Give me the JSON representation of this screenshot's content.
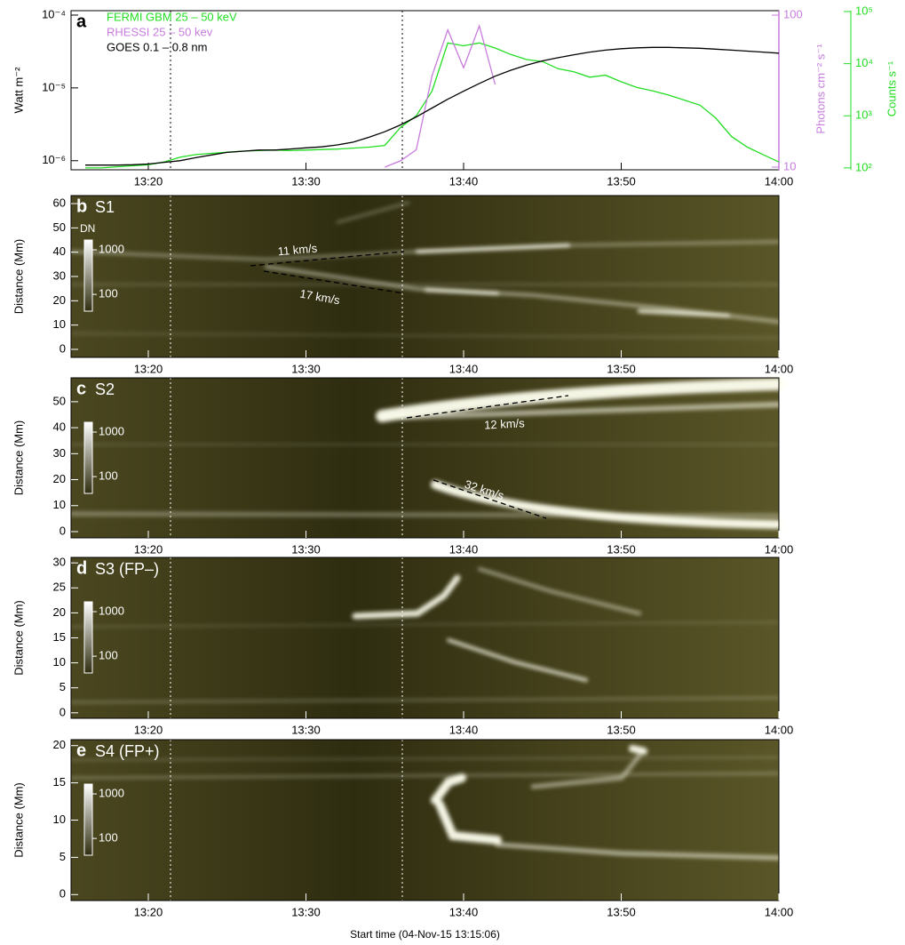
{
  "chart_data": [
    {
      "type": "line",
      "label": "a",
      "log": true,
      "xlim": [
        "13:15:06",
        "14:00"
      ],
      "xticks": [
        "13:20",
        "13:30",
        "13:40",
        "13:50",
        "14:00"
      ],
      "x": [
        "13:16",
        "13:17",
        "13:18",
        "13:19",
        "13:20",
        "13:21",
        "13:22",
        "13:23",
        "13:24",
        "13:25",
        "13:26",
        "13:27",
        "13:28",
        "13:29",
        "13:30",
        "13:31",
        "13:32",
        "13:33",
        "13:34",
        "13:35",
        "13:36",
        "13:37",
        "13:38",
        "13:39",
        "13:40",
        "13:41",
        "13:42",
        "13:43",
        "13:44",
        "13:45",
        "13:46",
        "13:47",
        "13:48",
        "13:49",
        "13:50",
        "13:51",
        "13:52",
        "13:53",
        "13:54",
        "13:55",
        "13:56",
        "13:57",
        "13:58",
        "13:59",
        "14:00"
      ],
      "ylabel": "Watt m⁻²",
      "ylim": [
        7.5e-07,
        0.000115
      ],
      "yticks": [
        {
          "value": 1e-06,
          "label": "10⁻⁶"
        },
        {
          "value": 1e-05,
          "label": "10⁻⁵"
        },
        {
          "value": 0.0001,
          "label": "10⁻⁴"
        }
      ],
      "y2label": "Photons cm⁻² s⁻¹",
      "y2color": "#c77cdd",
      "y2lim": [
        9.6,
        107
      ],
      "y2ticks": [
        10,
        100
      ],
      "y3label": "Counts s⁻¹",
      "y3color": "#22dd22",
      "y3lim": [
        92,
        104000
      ],
      "y3ticks": [
        {
          "value": 100,
          "label": "10²"
        },
        {
          "value": 1000,
          "label": "10³"
        },
        {
          "value": 10000,
          "label": "10⁴"
        },
        {
          "value": 100000,
          "label": "10⁵"
        }
      ],
      "series": [
        {
          "name": "FERMI GBM 25 – 50 keV",
          "color": "#22dd22",
          "axis": "y3",
          "values": [
            100,
            100,
            105,
            110,
            115,
            130,
            160,
            180,
            190,
            200,
            210,
            215,
            220,
            215,
            220,
            225,
            230,
            240,
            250,
            270,
            600,
            1000,
            3000,
            25000,
            22000,
            25000,
            20000,
            15000,
            12000,
            11000,
            8000,
            7000,
            5500,
            6000,
            4500,
            3500,
            3000,
            2500,
            2000,
            1600,
            900,
            400,
            250,
            180,
            130
          ]
        },
        {
          "name": "RHESSI 25 – 50 kev",
          "color": "#c77cdd",
          "axis": "y2",
          "values": [
            null,
            null,
            null,
            null,
            null,
            null,
            null,
            null,
            null,
            null,
            null,
            null,
            null,
            null,
            null,
            null,
            null,
            null,
            null,
            10,
            11,
            13,
            40,
            80,
            45,
            85,
            35,
            null,
            null,
            null,
            null,
            null,
            null,
            null,
            null,
            null,
            null,
            null,
            null,
            null,
            null,
            null,
            null,
            null,
            null
          ]
        },
        {
          "name": "GOES 0.1 – 0.8 nm",
          "color": "#000000",
          "values": [
            8.7e-07,
            8.7e-07,
            8.7e-07,
            8.8e-07,
            9e-07,
            9.5e-07,
            1e-06,
            1.1e-06,
            1.2e-06,
            1.3e-06,
            1.35e-06,
            1.4e-06,
            1.4e-06,
            1.45e-06,
            1.5e-06,
            1.55e-06,
            1.65e-06,
            1.8e-06,
            2.1e-06,
            2.5e-06,
            3.1e-06,
            4e-06,
            5.3e-06,
            7e-06,
            9e-06,
            1.15e-05,
            1.45e-05,
            1.75e-05,
            2.05e-05,
            2.35e-05,
            2.6e-05,
            2.85e-05,
            3.1e-05,
            3.3e-05,
            3.45e-05,
            3.55e-05,
            3.6e-05,
            3.6e-05,
            3.55e-05,
            3.5e-05,
            3.4e-05,
            3.3e-05,
            3.2e-05,
            3.1e-05,
            3e-05
          ]
        }
      ]
    },
    {
      "type": "image",
      "label": "b",
      "title": "S1",
      "ylabel": "Distance (Mm)",
      "xlim": [
        "13:15:06",
        "14:00"
      ],
      "xticks": [
        "13:20",
        "13:30",
        "13:40",
        "13:50",
        "14:00"
      ],
      "ylim": [
        -3.3,
        63.3
      ],
      "yticks": [
        0,
        10,
        20,
        30,
        40,
        50,
        60
      ],
      "colorbar_label": "DN",
      "colorbar_lim": [
        42,
        1660
      ],
      "colorbar_ticks": [
        100,
        1000
      ],
      "annotations": [
        "11 km/s",
        "17 km/s"
      ]
    },
    {
      "type": "image",
      "label": "c",
      "title": "S2",
      "ylabel": "Distance (Mm)",
      "xlim": [
        "13:15:06",
        "14:00"
      ],
      "xticks": [
        "13:20",
        "13:30",
        "13:40",
        "13:50",
        "14:00"
      ],
      "ylim": [
        -2.4,
        59.2
      ],
      "yticks": [
        0,
        10,
        20,
        30,
        40,
        50
      ],
      "colorbar_lim": [
        42,
        1660
      ],
      "colorbar_ticks": [
        100,
        1000
      ],
      "annotations": [
        "12 km/s",
        "32 km/s"
      ]
    },
    {
      "type": "image",
      "label": "d",
      "title": "S3 (FP–)",
      "ylabel": "Distance (Mm)",
      "xlim": [
        "13:15:06",
        "14:00"
      ],
      "xticks": [
        "13:20",
        "13:30",
        "13:40",
        "13:50",
        "14:00"
      ],
      "ylim": [
        -1.1,
        31.1
      ],
      "yticks": [
        0,
        5,
        10,
        15,
        20,
        25,
        30
      ],
      "colorbar_lim": [
        42,
        1660
      ],
      "colorbar_ticks": [
        100,
        1000
      ]
    },
    {
      "type": "image",
      "label": "e",
      "title": "S4 (FP+)",
      "ylabel": "Distance (Mm)",
      "xlabel": "Start time (04-Nov-15 13:15:06)",
      "xlim": [
        "13:15:06",
        "14:00"
      ],
      "xticks": [
        "13:20",
        "13:30",
        "13:40",
        "13:50",
        "14:00"
      ],
      "ylim": [
        -0.8,
        20.8
      ],
      "yticks": [
        0,
        5,
        10,
        15,
        20
      ],
      "colorbar_lim": [
        42,
        1660
      ],
      "colorbar_ticks": [
        100,
        1000
      ]
    }
  ]
}
